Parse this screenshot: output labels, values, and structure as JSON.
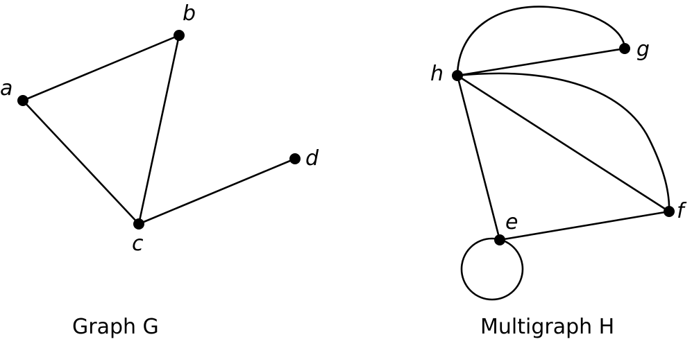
{
  "graph_g": {
    "caption": "Graph G",
    "vertices": {
      "a": "a",
      "b": "b",
      "c": "c",
      "d": "d"
    },
    "edges": [
      [
        "a",
        "b"
      ],
      [
        "a",
        "c"
      ],
      [
        "b",
        "c"
      ],
      [
        "c",
        "d"
      ]
    ]
  },
  "multigraph_h": {
    "caption": "Multigraph H",
    "vertices": {
      "e": "e",
      "f": "f",
      "g": "g",
      "h": "h"
    },
    "edges": [
      [
        "h",
        "g",
        "straight"
      ],
      [
        "h",
        "g",
        "curved"
      ],
      [
        "h",
        "f",
        "straight"
      ],
      [
        "h",
        "f",
        "curved"
      ],
      [
        "h",
        "e",
        "straight"
      ],
      [
        "e",
        "f",
        "straight"
      ],
      [
        "e",
        "e",
        "loop"
      ]
    ]
  }
}
